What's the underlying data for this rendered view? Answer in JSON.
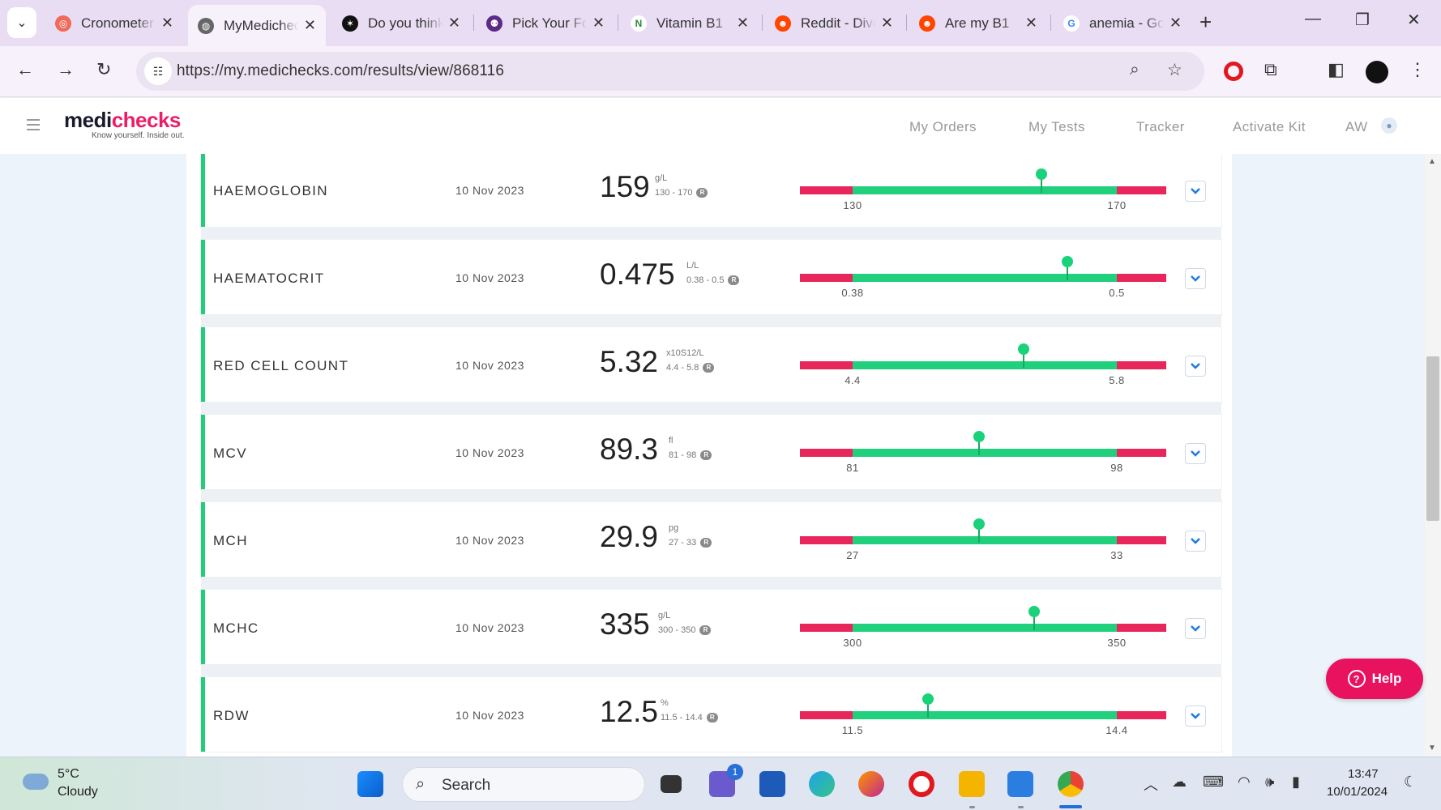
{
  "browser": {
    "tabs": [
      {
        "title": "Cronometer",
        "color": "#f06a5a",
        "glyph": "◎"
      },
      {
        "title": "MyMedichecks",
        "color": "#555555",
        "glyph": "◍"
      },
      {
        "title": "Do you think",
        "color": "#111111",
        "glyph": "✶"
      },
      {
        "title": "Pick Your Food",
        "color": "#5b2a86",
        "glyph": "⚉"
      },
      {
        "title": "Vitamin B1",
        "color": "#2f8a3a",
        "glyph": "N"
      },
      {
        "title": "Reddit - Dive",
        "color": "#ff4500",
        "glyph": "☻"
      },
      {
        "title": "Are my B1",
        "color": "#ff4500",
        "glyph": "☻"
      },
      {
        "title": "anemia - Google",
        "color": "#4285f4",
        "glyph": "G"
      }
    ],
    "url": "https://my.medichecks.com/results/view/868116"
  },
  "site": {
    "logo_main": "medi",
    "logo_accent": "checks",
    "logo_tagline": "Know yourself. Inside out.",
    "nav": [
      "My Orders",
      "My Tests",
      "Tracker",
      "Activate Kit"
    ],
    "user_initials": "AW"
  },
  "results": [
    {
      "name": "HAEMOGLOBIN",
      "date": "10 Nov 2023",
      "value": "159",
      "unit": "g/L",
      "range": "130 - 170",
      "low": "130",
      "high": "170",
      "position": 0.66
    },
    {
      "name": "HAEMATOCRIT",
      "date": "10 Nov 2023",
      "value": "0.475",
      "unit": "L/L",
      "range": "0.38 - 0.5",
      "low": "0.38",
      "high": "0.5",
      "position": 0.73
    },
    {
      "name": "RED CELL COUNT",
      "date": "10 Nov 2023",
      "value": "5.32",
      "unit": "x10S12/L",
      "range": "4.4 - 5.8",
      "low": "4.4",
      "high": "5.8",
      "position": 0.61
    },
    {
      "name": "MCV",
      "date": "10 Nov 2023",
      "value": "89.3",
      "unit": "fl",
      "range": "81 - 98",
      "low": "81",
      "high": "98",
      "position": 0.49
    },
    {
      "name": "MCH",
      "date": "10 Nov 2023",
      "value": "29.9",
      "unit": "pg",
      "range": "27 - 33",
      "low": "27",
      "high": "33",
      "position": 0.49
    },
    {
      "name": "MCHC",
      "date": "10 Nov 2023",
      "value": "335",
      "unit": "g/L",
      "range": "300 - 350",
      "low": "300",
      "high": "350",
      "position": 0.64
    },
    {
      "name": "RDW",
      "date": "10 Nov 2023",
      "value": "12.5",
      "unit": "%",
      "range": "11.5 - 14.4",
      "low": "11.5",
      "high": "14.4",
      "position": 0.35
    }
  ],
  "range_badge": "R",
  "help_label": "Help",
  "taskbar": {
    "temperature": "5°C",
    "condition": "Cloudy",
    "search_label": "Search",
    "chat_badge": "1",
    "time": "13:47",
    "date": "10/01/2024"
  },
  "colors": {
    "accent": "#ec1c69",
    "in_range": "#21d07c",
    "out_of_range": "#e8265b"
  }
}
